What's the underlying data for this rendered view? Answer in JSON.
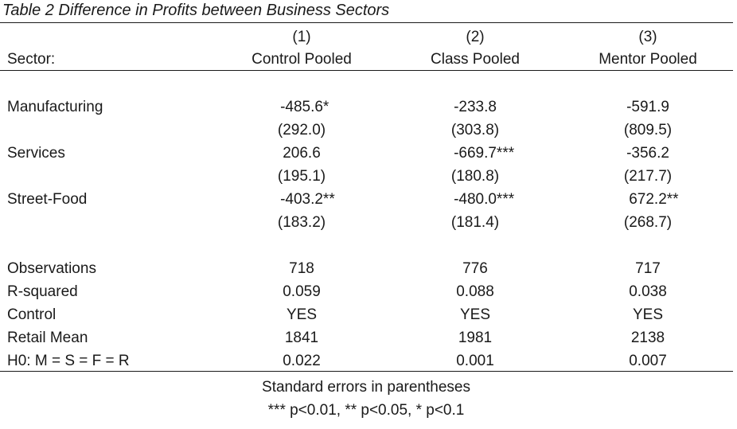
{
  "table": {
    "title": "Table 2 Difference in Profits between Business Sectors",
    "header": {
      "numbers": [
        "(1)",
        "(2)",
        "(3)"
      ],
      "row_label": "Sector:",
      "columns": [
        "Control Pooled",
        "Class Pooled",
        "Mentor Pooled"
      ]
    },
    "sectors": [
      {
        "label": "Manufacturing",
        "coef": [
          "-485.6*",
          "-233.8",
          "-591.9"
        ],
        "se": [
          "(292.0)",
          "(303.8)",
          "(809.5)"
        ]
      },
      {
        "label": "Services",
        "coef": [
          "206.6",
          "-669.7***",
          "-356.2"
        ],
        "se": [
          "(195.1)",
          "(180.8)",
          "(217.7)"
        ]
      },
      {
        "label": "Street-Food",
        "coef": [
          "-403.2**",
          "-480.0***",
          "672.2**"
        ],
        "se": [
          "(183.2)",
          "(181.4)",
          "(268.7)"
        ]
      }
    ],
    "stats": [
      {
        "label": "Observations",
        "values": [
          "718",
          "776",
          "717"
        ]
      },
      {
        "label": "R-squared",
        "values": [
          "0.059",
          "0.088",
          "0.038"
        ]
      },
      {
        "label": "Control",
        "values": [
          "YES",
          "YES",
          "YES"
        ]
      },
      {
        "label": "Retail Mean",
        "values": [
          "1841",
          "1981",
          "2138"
        ]
      },
      {
        "label": "H0: M = S = F = R",
        "values": [
          "0.022",
          "0.001",
          "0.007"
        ]
      }
    ],
    "notes": [
      "Standard errors in parentheses",
      "*** p<0.01, ** p<0.05, * p<0.1"
    ]
  }
}
